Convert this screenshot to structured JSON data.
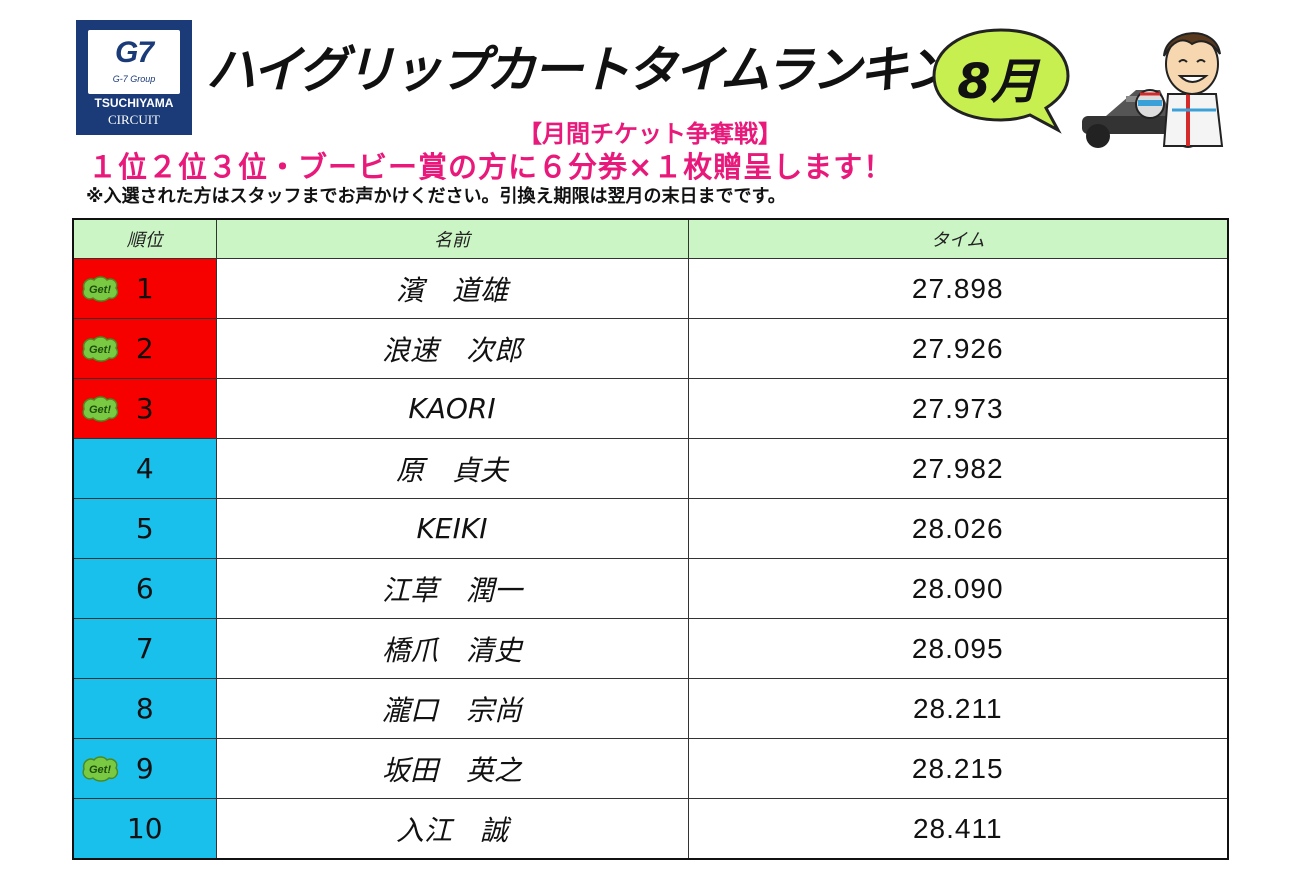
{
  "logo": {
    "brand": "G7",
    "group": "G-7 Group",
    "name": "TSUCHIYAMA",
    "sub": "CIRCUIT"
  },
  "header": {
    "title": "ハイグリップカートタイムランキング",
    "month": "8月",
    "subtitle": "【月間チケット争奪戦】",
    "promo": "１位２位３位・ブービー賞の方に６分券×１枚贈呈します！",
    "note": "※入選された方はスタッフまでお声かけください。引換え期限は翌月の末日までです。"
  },
  "table": {
    "headers": [
      "順位",
      "名前",
      "タイム"
    ],
    "badge_text": "Get!",
    "rows": [
      {
        "rank": "1",
        "name": "濱　道雄",
        "time": "27.898",
        "badge": true,
        "top3": true
      },
      {
        "rank": "2",
        "name": "浪速　次郎",
        "time": "27.926",
        "badge": true,
        "top3": true
      },
      {
        "rank": "3",
        "name": "KAORI",
        "time": "27.973",
        "badge": true,
        "top3": true
      },
      {
        "rank": "4",
        "name": "原　貞夫",
        "time": "27.982",
        "badge": false,
        "top3": false
      },
      {
        "rank": "5",
        "name": "KEIKI",
        "time": "28.026",
        "badge": false,
        "top3": false
      },
      {
        "rank": "6",
        "name": "江草　潤一",
        "time": "28.090",
        "badge": false,
        "top3": false
      },
      {
        "rank": "7",
        "name": "橋爪　清史",
        "time": "28.095",
        "badge": false,
        "top3": false
      },
      {
        "rank": "8",
        "name": "瀧口　宗尚",
        "time": "28.211",
        "badge": false,
        "top3": false
      },
      {
        "rank": "9",
        "name": "坂田　英之",
        "time": "28.215",
        "badge": true,
        "top3": false
      },
      {
        "rank": "10",
        "name": "入江　誠",
        "time": "28.411",
        "badge": false,
        "top3": false
      }
    ]
  },
  "colors": {
    "top3": "#f70000",
    "rest": "#19c0ec",
    "header_bg": "#ccf5c6",
    "accent_pink": "#e8197a",
    "badge_green": "#7ac943",
    "month_bubble": "#c6ef4f"
  }
}
